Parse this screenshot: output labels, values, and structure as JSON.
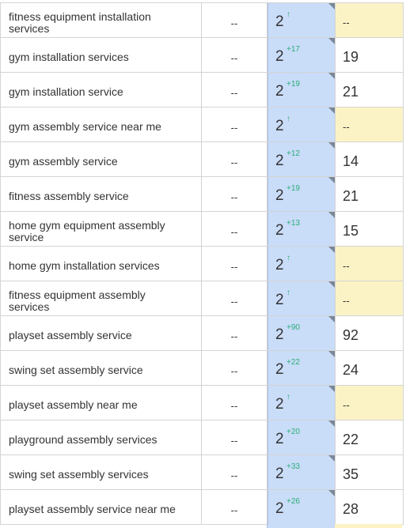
{
  "rows": [
    {
      "keyword": "fitness equipment installation services",
      "prev": "--",
      "rank": "2",
      "delta": "↑",
      "best": "--",
      "best_empty": true
    },
    {
      "keyword": "gym installation services",
      "prev": "--",
      "rank": "2",
      "delta": "+17",
      "best": "19",
      "best_empty": false
    },
    {
      "keyword": "gym installation service",
      "prev": "--",
      "rank": "2",
      "delta": "+19",
      "best": "21",
      "best_empty": false
    },
    {
      "keyword": "gym assembly service near me",
      "prev": "--",
      "rank": "2",
      "delta": "↑",
      "best": "--",
      "best_empty": true
    },
    {
      "keyword": "gym assembly service",
      "prev": "--",
      "rank": "2",
      "delta": "+12",
      "best": "14",
      "best_empty": false
    },
    {
      "keyword": "fitness assembly service",
      "prev": "--",
      "rank": "2",
      "delta": "+19",
      "best": "21",
      "best_empty": false
    },
    {
      "keyword": "home gym equipment assembly service",
      "prev": "--",
      "rank": "2",
      "delta": "+13",
      "best": "15",
      "best_empty": false
    },
    {
      "keyword": "home gym installation services",
      "prev": "--",
      "rank": "2",
      "delta": "↑",
      "best": "--",
      "best_empty": true
    },
    {
      "keyword": "fitness equipment assembly services",
      "prev": "--",
      "rank": "2",
      "delta": "↑",
      "best": "--",
      "best_empty": true
    },
    {
      "keyword": "playset assembly service",
      "prev": "--",
      "rank": "2",
      "delta": "+90",
      "best": "92",
      "best_empty": false
    },
    {
      "keyword": "swing set assembly service",
      "prev": "--",
      "rank": "2",
      "delta": "+22",
      "best": "24",
      "best_empty": false
    },
    {
      "keyword": "playset assembly near me",
      "prev": "--",
      "rank": "2",
      "delta": "↑",
      "best": "--",
      "best_empty": true
    },
    {
      "keyword": "playground assembly services",
      "prev": "--",
      "rank": "2",
      "delta": "+20",
      "best": "22",
      "best_empty": false
    },
    {
      "keyword": "swing set assembly services",
      "prev": "--",
      "rank": "2",
      "delta": "+33",
      "best": "35",
      "best_empty": false
    },
    {
      "keyword": "playset assembly service near me",
      "prev": "--",
      "rank": "2",
      "delta": "+26",
      "best": "28",
      "best_empty": false
    }
  ],
  "colors": {
    "current_rank_bg": "#c9dcf8",
    "empty_best_bg": "#fbf3c6",
    "delta_green": "#2dae7a"
  }
}
